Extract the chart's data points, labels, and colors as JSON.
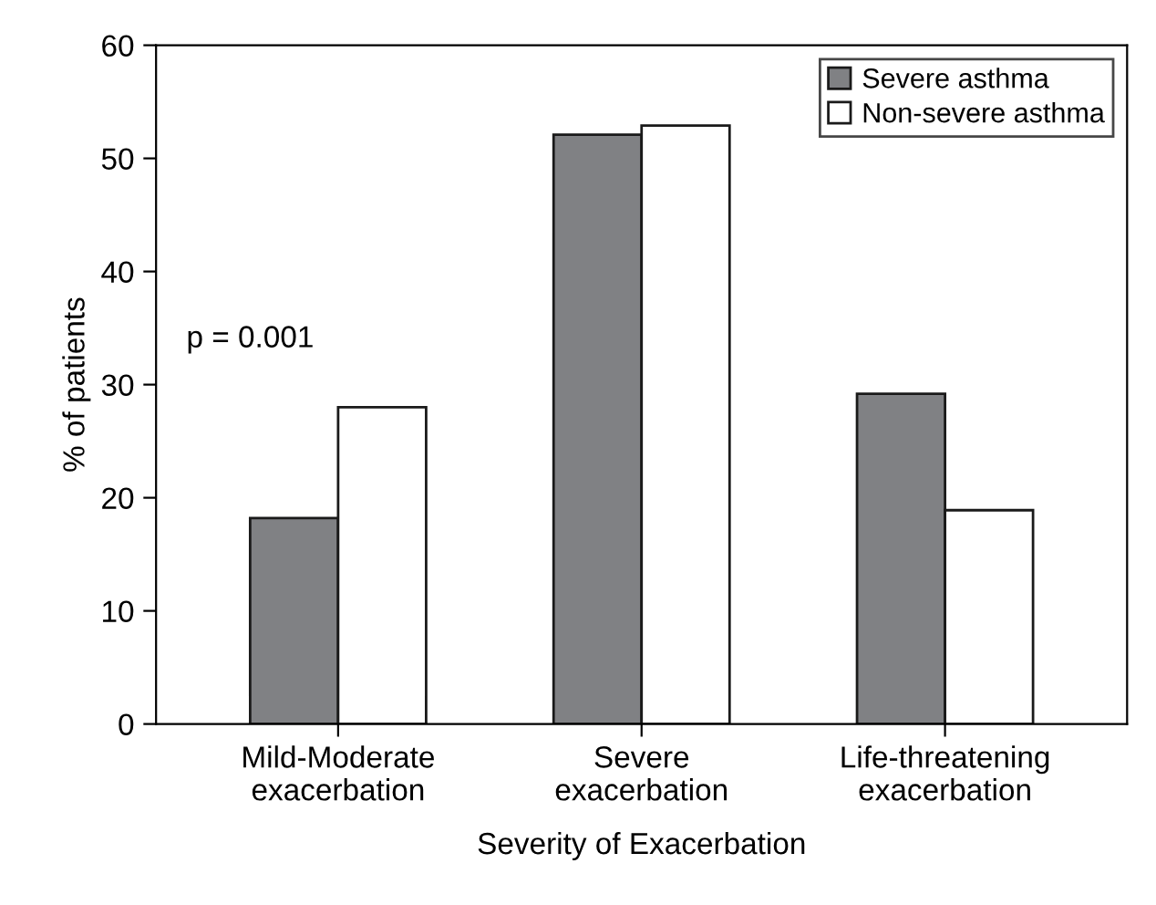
{
  "chart_data": {
    "type": "bar",
    "xlabel": "Severity of Exacerbation",
    "ylabel": "% of patients",
    "categories": [
      "Mild-Moderate\nexacerbation",
      "Severe\nexacerbation",
      "Life-threatening\nexacerbation"
    ],
    "series": [
      {
        "name": "Severe asthma",
        "color": "#808184",
        "values": [
          18.2,
          52.1,
          29.2
        ]
      },
      {
        "name": "Non-severe asthma",
        "color": "#ffffff",
        "values": [
          28.0,
          52.9,
          18.9
        ]
      }
    ],
    "annotations": [
      "p = 0.001"
    ],
    "ylim": [
      0,
      60
    ],
    "yticks": [
      0,
      10,
      20,
      30,
      40,
      50,
      60
    ],
    "grid": false,
    "legend": "top right"
  }
}
